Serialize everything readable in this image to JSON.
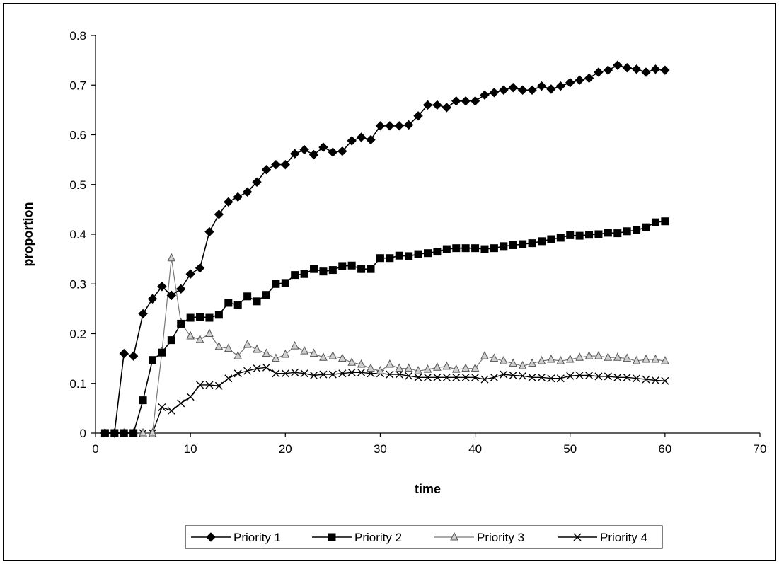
{
  "chart_data": {
    "type": "line",
    "title": "",
    "xlabel": "time",
    "ylabel": "proportion",
    "xlim": [
      0,
      70
    ],
    "ylim": [
      0,
      0.8
    ],
    "x_ticks": [
      0,
      10,
      20,
      30,
      40,
      50,
      60,
      70
    ],
    "y_ticks": [
      0,
      0.1,
      0.2,
      0.3,
      0.4,
      0.5,
      0.6,
      0.7,
      0.8
    ],
    "grid": false,
    "legend_position": "bottom",
    "x": [
      1,
      2,
      3,
      4,
      5,
      6,
      7,
      8,
      9,
      10,
      11,
      12,
      13,
      14,
      15,
      16,
      17,
      18,
      19,
      20,
      21,
      22,
      23,
      24,
      25,
      26,
      27,
      28,
      29,
      30,
      31,
      32,
      33,
      34,
      35,
      36,
      37,
      38,
      39,
      40,
      41,
      42,
      43,
      44,
      45,
      46,
      47,
      48,
      49,
      50,
      51,
      52,
      53,
      54,
      55,
      56,
      57,
      58,
      59,
      60
    ],
    "series": [
      {
        "name": "Priority 1",
        "marker": "diamond",
        "values": [
          0,
          0,
          0.16,
          0.155,
          0.24,
          0.27,
          0.295,
          0.277,
          0.29,
          0.32,
          0.332,
          0.405,
          0.44,
          0.465,
          0.475,
          0.485,
          0.505,
          0.53,
          0.54,
          0.54,
          0.562,
          0.57,
          0.56,
          0.575,
          0.565,
          0.567,
          0.588,
          0.595,
          0.59,
          0.618,
          0.618,
          0.618,
          0.62,
          0.638,
          0.66,
          0.66,
          0.655,
          0.668,
          0.668,
          0.668,
          0.68,
          0.685,
          0.69,
          0.695,
          0.69,
          0.69,
          0.698,
          0.692,
          0.698,
          0.705,
          0.71,
          0.714,
          0.726,
          0.73,
          0.74,
          0.735,
          0.732,
          0.726,
          0.732,
          0.73
        ]
      },
      {
        "name": "Priority 2",
        "marker": "square",
        "values": [
          0,
          0,
          0,
          0,
          0.066,
          0.147,
          0.162,
          0.187,
          0.22,
          0.232,
          0.234,
          0.232,
          0.238,
          0.262,
          0.258,
          0.275,
          0.265,
          0.278,
          0.3,
          0.302,
          0.318,
          0.32,
          0.33,
          0.325,
          0.328,
          0.336,
          0.337,
          0.33,
          0.33,
          0.352,
          0.352,
          0.357,
          0.356,
          0.36,
          0.362,
          0.365,
          0.37,
          0.372,
          0.372,
          0.372,
          0.37,
          0.372,
          0.376,
          0.378,
          0.38,
          0.382,
          0.386,
          0.39,
          0.393,
          0.398,
          0.397,
          0.399,
          0.4,
          0.403,
          0.402,
          0.406,
          0.408,
          0.414,
          0.424,
          0.426
        ]
      },
      {
        "name": "Priority 3",
        "marker": "triangle",
        "values": [
          0,
          0,
          0,
          0,
          0,
          0,
          0.164,
          0.352,
          0.222,
          0.195,
          0.188,
          0.2,
          0.174,
          0.17,
          0.155,
          0.178,
          0.168,
          0.16,
          0.15,
          0.158,
          0.175,
          0.165,
          0.16,
          0.152,
          0.155,
          0.15,
          0.142,
          0.138,
          0.13,
          0.125,
          0.138,
          0.13,
          0.13,
          0.125,
          0.128,
          0.132,
          0.134,
          0.128,
          0.13,
          0.13,
          0.155,
          0.15,
          0.145,
          0.14,
          0.135,
          0.14,
          0.145,
          0.148,
          0.145,
          0.148,
          0.152,
          0.155,
          0.155,
          0.152,
          0.152,
          0.15,
          0.145,
          0.148,
          0.148,
          0.145
        ]
      },
      {
        "name": "Priority 4",
        "marker": "x",
        "values": [
          0,
          0,
          0,
          0,
          0,
          0,
          0.052,
          0.045,
          0.06,
          0.073,
          0.097,
          0.097,
          0.095,
          0.11,
          0.12,
          0.125,
          0.13,
          0.132,
          0.12,
          0.12,
          0.122,
          0.12,
          0.116,
          0.118,
          0.118,
          0.12,
          0.122,
          0.122,
          0.12,
          0.12,
          0.118,
          0.118,
          0.115,
          0.112,
          0.112,
          0.112,
          0.112,
          0.112,
          0.112,
          0.112,
          0.108,
          0.112,
          0.118,
          0.116,
          0.115,
          0.112,
          0.112,
          0.11,
          0.11,
          0.115,
          0.116,
          0.116,
          0.114,
          0.114,
          0.112,
          0.112,
          0.11,
          0.108,
          0.106,
          0.105
        ]
      }
    ]
  }
}
